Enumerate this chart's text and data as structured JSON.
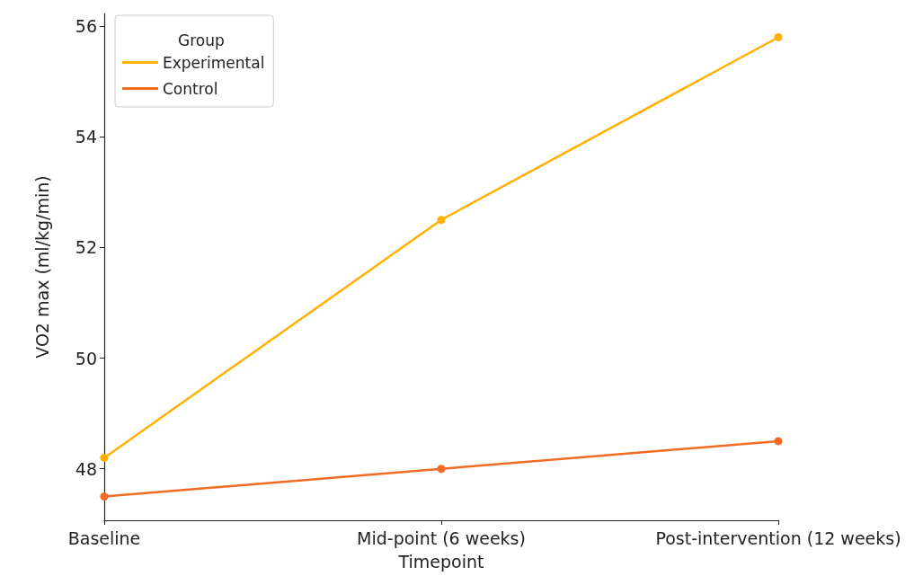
{
  "chart_data": {
    "type": "line",
    "xlabel": "Timepoint",
    "ylabel": "VO2 max (ml/kg/min)",
    "legend_title": "Group",
    "categories": [
      "Baseline",
      "Mid-point (6 weeks)",
      "Post-intervention (12 weeks)"
    ],
    "series": [
      {
        "name": "Experimental",
        "color": "#ffb000",
        "values": [
          48.2,
          52.5,
          55.8
        ]
      },
      {
        "name": "Control",
        "color": "#f26b22",
        "values": [
          47.5,
          48.0,
          48.5
        ]
      }
    ],
    "ylim": [
      47.07,
      56.23
    ],
    "yticks": [
      48,
      50,
      52,
      54,
      56
    ],
    "grid": false,
    "legend": "top left",
    "marker": "circle",
    "line_style": "solid"
  }
}
